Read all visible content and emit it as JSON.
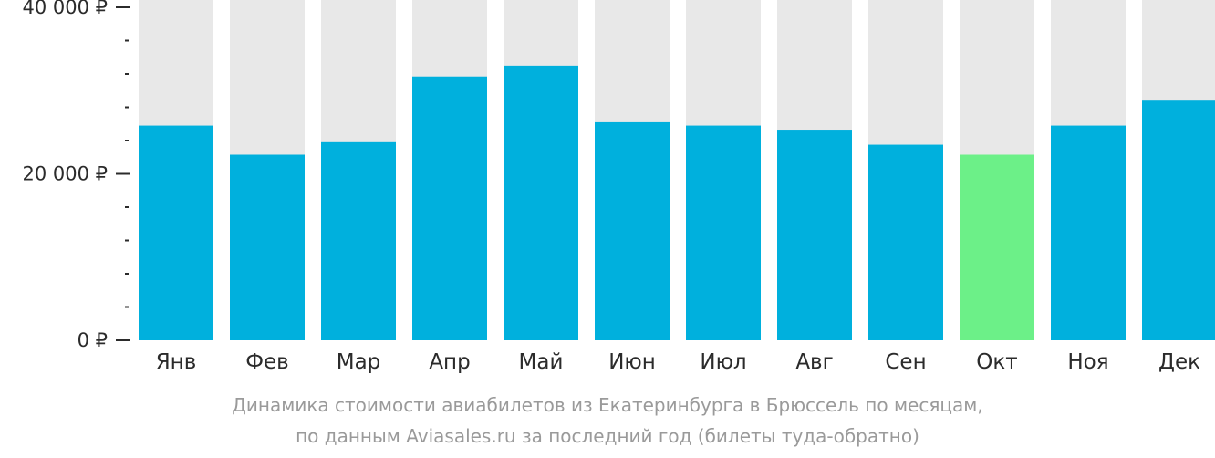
{
  "chart_data": {
    "type": "bar",
    "categories": [
      "Янв",
      "Фев",
      "Мар",
      "Апр",
      "Май",
      "Июн",
      "Июл",
      "Авг",
      "Сен",
      "Окт",
      "Ноя",
      "Дек"
    ],
    "values": [
      25800,
      22300,
      23800,
      31700,
      33000,
      26200,
      25800,
      25200,
      23500,
      22300,
      25800,
      28800
    ],
    "ylim": [
      0,
      40000
    ],
    "y_ticks": [
      {
        "value": 0,
        "label": "0 ₽"
      },
      {
        "value": 20000,
        "label": "20 000 ₽"
      },
      {
        "value": 40000,
        "label": "40 000 ₽"
      }
    ],
    "y_minor_step": 4000,
    "highlight_index": 9,
    "colors": {
      "bar": "#00b0dd",
      "highlight": "#6cf088",
      "background_bar": "#e8e8e8",
      "axis": "#2b2b2b"
    },
    "caption_lines": [
      "Динамика стоимости авиабилетов из Екатеринбурга в Брюссель по месяцам,",
      "по данным Aviasales.ru за последний год (билеты туда-обратно)"
    ]
  }
}
